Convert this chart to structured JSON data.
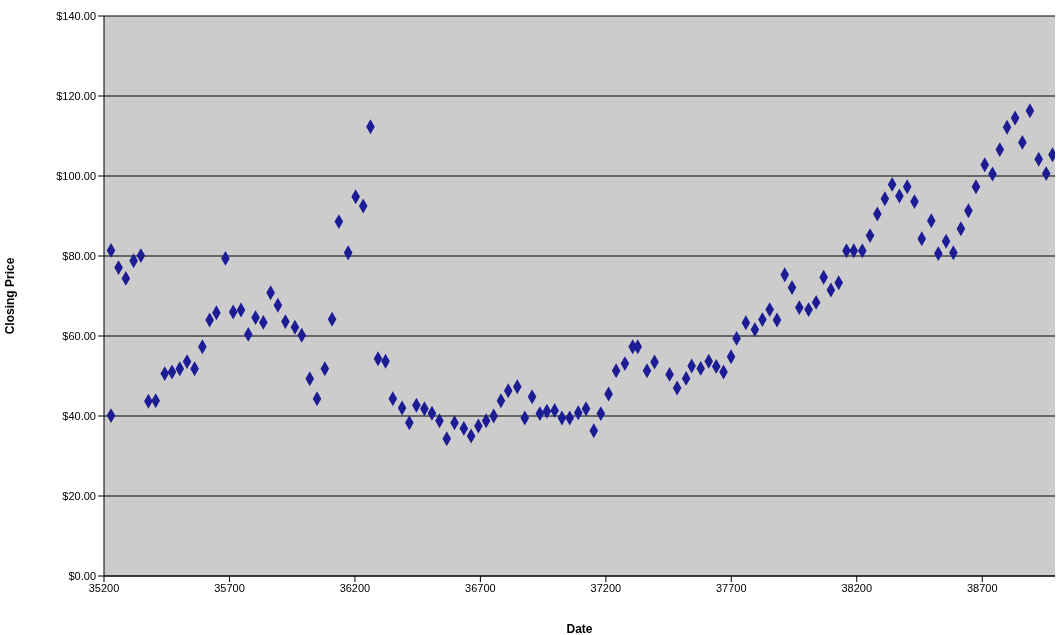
{
  "chart_data": {
    "type": "scatter",
    "xlabel": "Date",
    "ylabel": "Closing Price",
    "x": [
      35228,
      35228,
      35258,
      35287,
      35318,
      35347,
      35377,
      35406,
      35442,
      35471,
      35502,
      35531,
      35561,
      35592,
      35621,
      35648,
      35684,
      35715,
      35746,
      35775,
      35804,
      35835,
      35864,
      35893,
      35923,
      35961,
      35988,
      36020,
      36049,
      36080,
      36109,
      36136,
      36173,
      36203,
      36233,
      36262,
      36292,
      36322,
      36351,
      36388,
      36417,
      36445,
      36477,
      36507,
      36537,
      36566,
      36597,
      36634,
      36663,
      36692,
      36723,
      36753,
      36782,
      36811,
      36847,
      36877,
      36906,
      36937,
      36965,
      36996,
      37025,
      37056,
      37090,
      37121,
      37152,
      37180,
      37211,
      37241,
      37276,
      37307,
      37327,
      37364,
      37394,
      37454,
      37484,
      37520,
      37542,
      37578,
      37610,
      37640,
      37669,
      37699,
      37721,
      37758,
      37794,
      37824,
      37853,
      37882,
      37913,
      37942,
      37971,
      38008,
      38038,
      38068,
      38097,
      38128,
      38159,
      38188,
      38222,
      38253,
      38282,
      38312,
      38341,
      38370,
      38401,
      38430,
      38459,
      38497,
      38525,
      38556,
      38585,
      38615,
      38645,
      38675,
      38710,
      38741,
      38770,
      38799,
      38831,
      38860,
      38890,
      38925,
      38955,
      38980
    ],
    "series": [
      {
        "color": "#1c1c94",
        "values": [
          81.4,
          40.1,
          77.1,
          74.4,
          78.8,
          80.1,
          43.7,
          43.8,
          50.6,
          51,
          51.8,
          53.6,
          51.8,
          57.3,
          64,
          65.8,
          79.4,
          66,
          66.5,
          60.4,
          64.6,
          63.4,
          70.8,
          67.7,
          63.6,
          62.2,
          60.2,
          49.3,
          44.3,
          51.8,
          64.2,
          88.6,
          80.8,
          94.8,
          92.5,
          112.3,
          54.3,
          53.7,
          44.3,
          42,
          38.3,
          42.7,
          41.8,
          40.7,
          38.8,
          34.3,
          38.3,
          36.9,
          35,
          37.5,
          38.8,
          40,
          43.8,
          46.3,
          47.3,
          39.5,
          44.8,
          40.6,
          41.2,
          41.4,
          39.5,
          39.5,
          40.8,
          41.8,
          36.3,
          40.6,
          45.5,
          51.3,
          53.1,
          57.3,
          57.3,
          51.3,
          53.5,
          50.4,
          47,
          49.4,
          52.5,
          51.9,
          53.7,
          52.4,
          51,
          54.8,
          59.4,
          63.3,
          61.6,
          64.1,
          66.6,
          64,
          75.3,
          72.1,
          67.1,
          66.6,
          68.4,
          74.7,
          71.5,
          73.3,
          81.3,
          81.3,
          81.3,
          85.1,
          90.5,
          94.3,
          97.9,
          95,
          97.3,
          93.6,
          84.3,
          88.8,
          80.6,
          83.7,
          80.8,
          86.8,
          91.3,
          97.3,
          102.8,
          100.5,
          106.6,
          112.2,
          114.5,
          108.4,
          116.3,
          104.2,
          100.6,
          105.3
        ]
      }
    ],
    "xlim": [
      35200,
      38990
    ],
    "xticks": [
      35200,
      35700,
      36200,
      36700,
      37200,
      37700,
      38200,
      38700
    ],
    "ylim": [
      0,
      140
    ],
    "yticks": [
      {
        "value": 0,
        "label": "$0.00"
      },
      {
        "value": 20,
        "label": "$20.00"
      },
      {
        "value": 40,
        "label": "$40.00"
      },
      {
        "value": 60,
        "label": "$60.00"
      },
      {
        "value": 80,
        "label": "$80.00"
      },
      {
        "value": 100,
        "label": "$100.00"
      },
      {
        "value": 120,
        "label": "$120.00"
      },
      {
        "value": 140,
        "label": "$140.00"
      }
    ],
    "grid": "y",
    "marker": "diamond",
    "legend": false
  }
}
